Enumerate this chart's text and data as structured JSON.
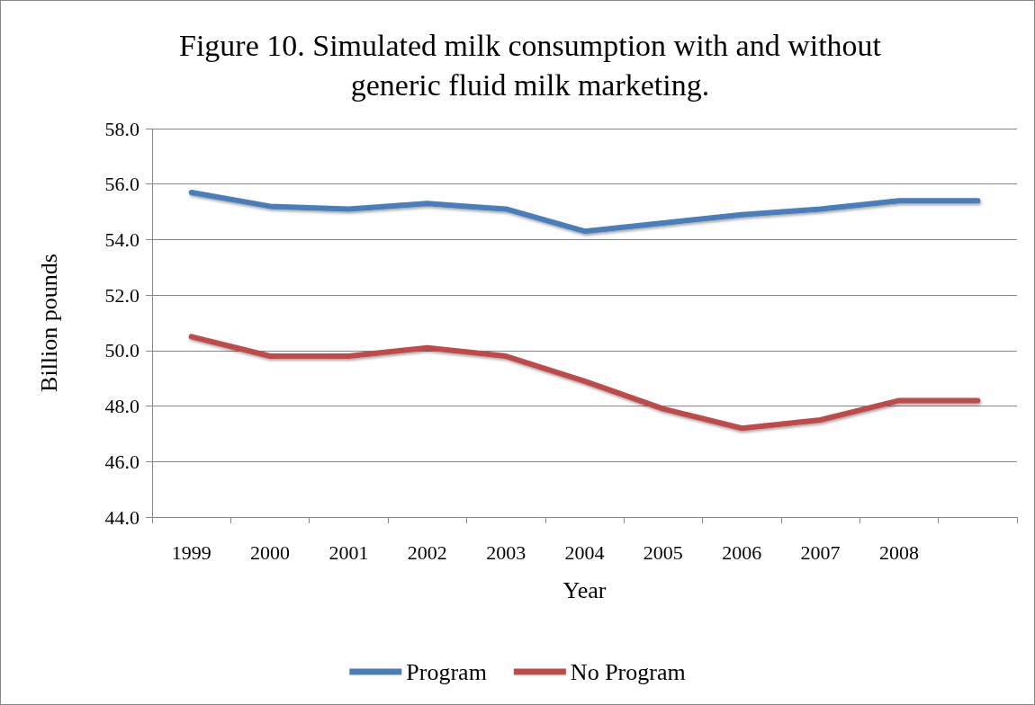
{
  "chart_data": {
    "type": "line",
    "title": "Figure 10. Simulated milk consumption with and without\ngeneric fluid milk marketing.",
    "xlabel": "Year",
    "ylabel": "Billion pounds",
    "categories": [
      "1999",
      "2000",
      "2001",
      "2002",
      "2003",
      "2004",
      "2005",
      "2006",
      "2007",
      "2008",
      null
    ],
    "series": [
      {
        "name": "Program",
        "color": "#4a7ebb",
        "values": [
          55.7,
          55.2,
          55.1,
          55.3,
          55.1,
          54.3,
          54.6,
          54.9,
          55.1,
          55.4,
          55.4
        ]
      },
      {
        "name": "No Program",
        "color": "#be4b48",
        "values": [
          50.5,
          49.8,
          49.8,
          50.1,
          49.8,
          48.9,
          47.9,
          47.2,
          47.5,
          48.2,
          48.2
        ]
      }
    ],
    "ylim": [
      44,
      58
    ],
    "yticks": [
      {
        "value": 44,
        "label": "44.0"
      },
      {
        "value": 46,
        "label": "46.0"
      },
      {
        "value": 48,
        "label": "48.0"
      },
      {
        "value": 50,
        "label": "50.0"
      },
      {
        "value": 52,
        "label": "52.0"
      },
      {
        "value": 54,
        "label": "54.0"
      },
      {
        "value": 56,
        "label": "56.0"
      },
      {
        "value": 58,
        "label": "58.0"
      }
    ],
    "grid": "y",
    "legend": "bottom",
    "marker": "none",
    "line_style": "solid"
  }
}
